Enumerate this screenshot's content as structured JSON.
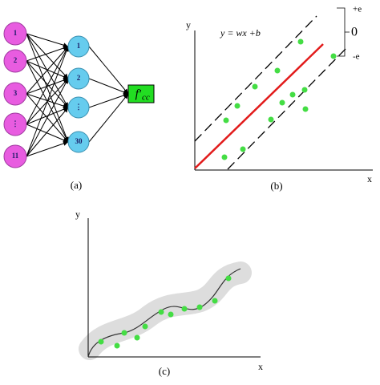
{
  "panel_a": {
    "caption": "(a)",
    "input_nodes": [
      "1",
      "2",
      "3",
      "⋮",
      "11"
    ],
    "hidden_nodes": [
      "1",
      "2",
      "⋮",
      "30"
    ],
    "output": {
      "symbol": "f'",
      "subscript": "cc"
    }
  },
  "panel_b": {
    "caption": "(b)",
    "y_label": "y",
    "x_label": "x",
    "equation": "y = wx +b",
    "margin_labels": [
      "+e",
      "0",
      "-e"
    ]
  },
  "panel_c": {
    "caption": "(c)",
    "y_label": "y",
    "x_label": "x"
  }
}
